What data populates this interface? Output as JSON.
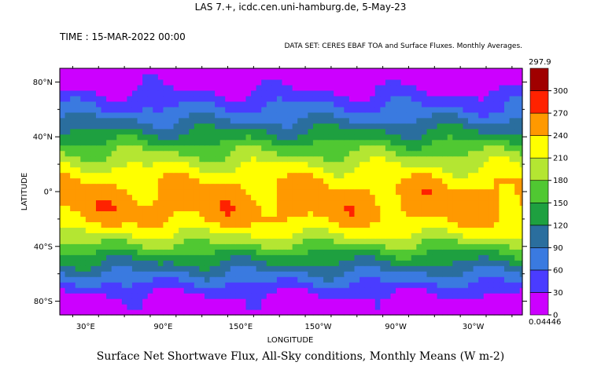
{
  "header": "LAS 7.+, icdc.cen.uni-hamburg.de,  5-May-23",
  "time_label": "TIME : 15-MAR-2022 00:00",
  "dataset_label": "DATA SET: CERES EBAF TOA and Surface Fluxes. Monthly Averages.",
  "chart_data": {
    "type": "heatmap",
    "title": "Surface Net Shortwave Flux, All-Sky conditions, Monthly Means (W m-2)",
    "xlabel": "LONGITUDE",
    "ylabel": "LATITUDE",
    "xlim": [
      10,
      368
    ],
    "ylim": [
      -90,
      90
    ],
    "x_ticks": [
      "30°E",
      "90°E",
      "150°E",
      "150°W",
      "90°W",
      "30°W"
    ],
    "x_tick_values": [
      30,
      90,
      150,
      210,
      270,
      330
    ],
    "y_ticks": [
      "80°N",
      "40°N",
      "0°",
      "40°S",
      "80°S"
    ],
    "y_tick_values": [
      80,
      40,
      0,
      -40,
      -80
    ],
    "colorbar": {
      "max_label": "297.9",
      "min_label": "0.04446",
      "levels": [
        0,
        30,
        60,
        90,
        120,
        150,
        180,
        210,
        240,
        270,
        300
      ],
      "level_labels": [
        "0",
        "30",
        "60",
        "90",
        "120",
        "150",
        "180",
        "210",
        "240",
        "270",
        "300"
      ],
      "colors": [
        "#cc00ff",
        "#4a3cff",
        "#3a7ae0",
        "#2a6e9e",
        "#1ea040",
        "#50c832",
        "#b4e632",
        "#ffff00",
        "#ff9900",
        "#ff2200",
        "#a00000"
      ]
    },
    "zonal_profile": {
      "lat": [
        -90,
        -80,
        -70,
        -60,
        -50,
        -40,
        -30,
        -20,
        -10,
        0,
        10,
        20,
        30,
        40,
        50,
        60,
        70,
        80,
        90
      ],
      "value": [
        5,
        15,
        45,
        85,
        125,
        170,
        215,
        245,
        255,
        250,
        235,
        205,
        175,
        135,
        100,
        65,
        40,
        15,
        5
      ]
    }
  }
}
